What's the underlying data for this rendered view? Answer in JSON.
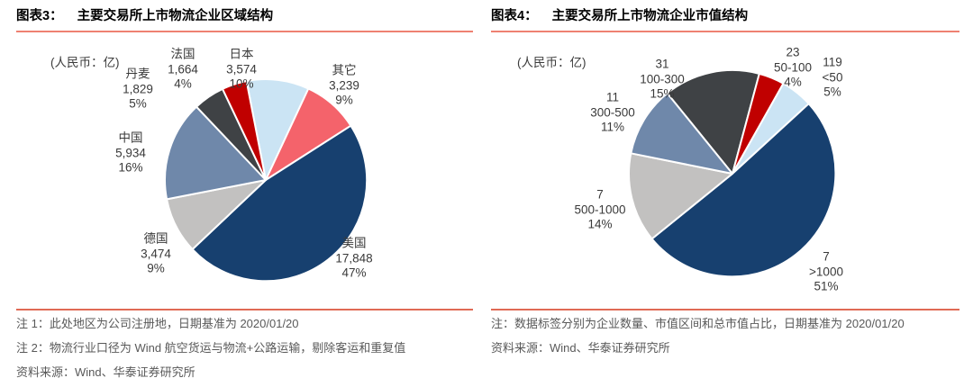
{
  "panels": [
    {
      "tag": "图表3：",
      "notes": [
        "注 1：此处地区为公司注册地，日期基准为 2020/01/20",
        "注 2：物流行业口径为 Wind 航空货运与物流+公路运输，剔除客运和重复值",
        "资料来源：Wind、华泰证券研究所"
      ]
    },
    {
      "tag": "图表4：",
      "notes": [
        "注：数据标签分别为企业数量、市值区间和总市值占比，日期基准为 2020/01/20",
        "资料来源：Wind、华泰证券研究所"
      ]
    }
  ],
  "chart_data": [
    {
      "type": "pie",
      "title": "主要交易所上市物流企业区域结构",
      "unit": "(人民币：亿)",
      "direction": "clockwise",
      "start_angle_deg": -11,
      "label_format": [
        "name",
        "value",
        "pct%"
      ],
      "slices": [
        {
          "name": "日本",
          "value": "3,574",
          "pct": 10,
          "color": "#cbe4f4"
        },
        {
          "name": "其它",
          "value": "3,239",
          "pct": 9,
          "color": "#f4636b"
        },
        {
          "name": "美国",
          "value": "17,848",
          "pct": 47,
          "color": "#17406f"
        },
        {
          "name": "德国",
          "value": "3,474",
          "pct": 9,
          "color": "#c2c1c0"
        },
        {
          "name": "中国",
          "value": "5,934",
          "pct": 16,
          "color": "#6f88aa"
        },
        {
          "name": "丹麦",
          "value": "1,829",
          "pct": 5,
          "color": "#3f4245"
        },
        {
          "name": "法国",
          "value": "1,664",
          "pct": 4,
          "color": "#c00000"
        }
      ]
    },
    {
      "type": "pie",
      "title": "主要交易所上市物流企业市值结构",
      "unit": "(人民币：亿)",
      "direction": "clockwise",
      "start_angle_deg": -39,
      "label_format": [
        "count",
        "range",
        "pct%"
      ],
      "slices": [
        {
          "count": "31",
          "range": "100-300",
          "pct": 15,
          "color": "#3f4245"
        },
        {
          "count": "23",
          "range": "50-100",
          "pct": 4,
          "color": "#c00000"
        },
        {
          "count": "119",
          "range": "<50",
          "pct": 5,
          "color": "#cbe4f4"
        },
        {
          "count": "7",
          "range": ">1000",
          "pct": 51,
          "color": "#17406f"
        },
        {
          "count": "7",
          "range": "500-1000",
          "pct": 14,
          "color": "#c2c1c0"
        },
        {
          "count": "11",
          "range": "300-500",
          "pct": 11,
          "color": "#6f88aa"
        }
      ]
    }
  ]
}
